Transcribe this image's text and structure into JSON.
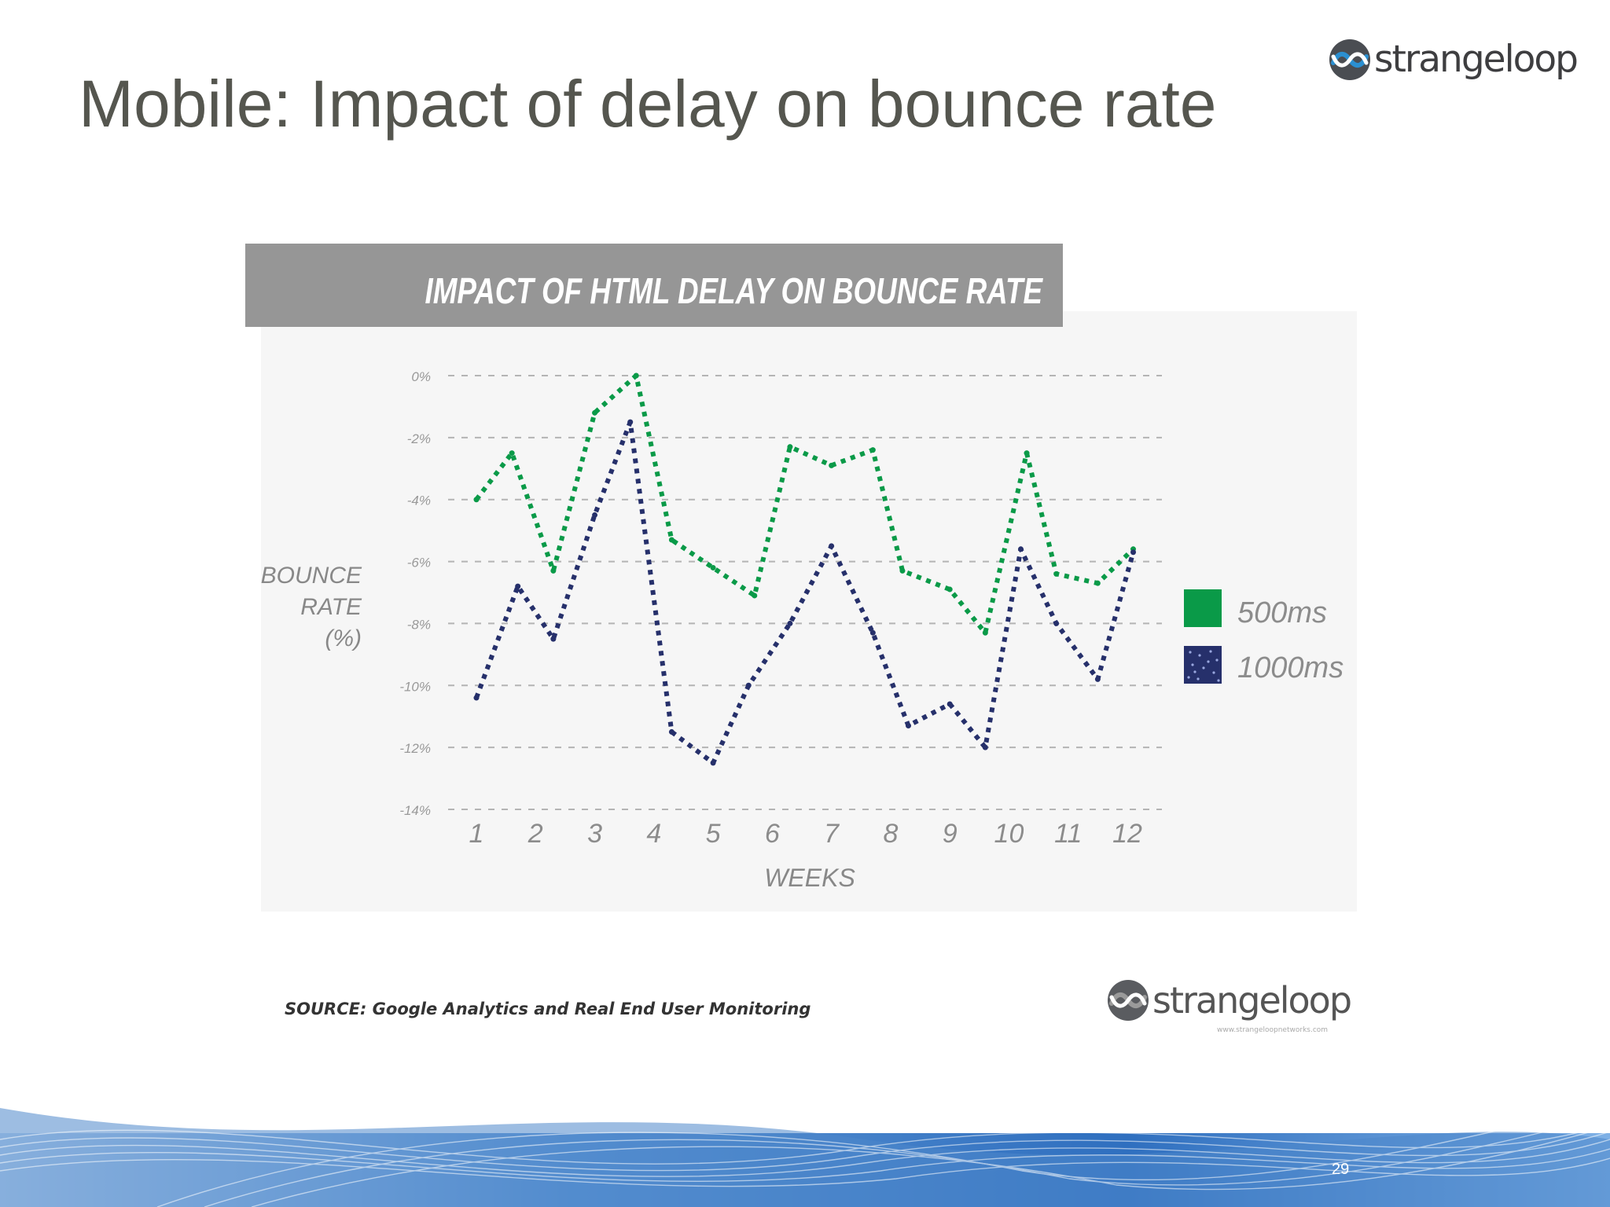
{
  "slide": {
    "title": "Mobile: Impact of delay on bounce rate",
    "logo_text": "strangeloop",
    "logo_tagline": "www.strangeloopnetworks.com",
    "page_number": "29"
  },
  "colors": {
    "series_500": "#0a9a48",
    "series_1000": "#26306b",
    "banner": "#969696",
    "plot_bg": "#f6f6f6",
    "title_text": "#55564f"
  },
  "source_text": "SOURCE:  Google Analytics and Real End User Monitoring",
  "chart_data": {
    "type": "line",
    "title": "IMPACT OF HTML DELAY ON BOUNCE RATE",
    "xlabel": "WEEKS",
    "ylabel": "BOUNCE RATE (%)",
    "ylabel_lines": [
      "BOUNCE",
      "RATE",
      "(%)"
    ],
    "x_ticks": [
      "1",
      "2",
      "3",
      "4",
      "5",
      "6",
      "7",
      "8",
      "9",
      "10",
      "11",
      "12"
    ],
    "y_ticks": [
      "0%",
      "-2%",
      "-4%",
      "-6%",
      "-8%",
      "-10%",
      "-12%",
      "-14%"
    ],
    "ylim": [
      -14,
      0
    ],
    "xlim": [
      1,
      12
    ],
    "grid": true,
    "line_style": "dotted",
    "legend_position": "right",
    "series": [
      {
        "name": "500ms",
        "color": "#0a9a48",
        "x": [
          1,
          1.6,
          2.3,
          3,
          3.7,
          4.3,
          5,
          5.7,
          6.3,
          7,
          7.7,
          8.2,
          9,
          9.6,
          10.3,
          10.8,
          11.5,
          12.1
        ],
        "y": [
          -4.0,
          -2.5,
          -6.3,
          -1.2,
          0.0,
          -5.3,
          -6.2,
          -7.1,
          -2.3,
          -2.9,
          -2.4,
          -6.3,
          -6.9,
          -8.3,
          -2.5,
          -6.4,
          -6.7,
          -5.6
        ]
      },
      {
        "name": "1000ms",
        "color": "#26306b",
        "x": [
          1,
          1.7,
          2.3,
          3,
          3.6,
          4.3,
          5,
          5.6,
          6.3,
          7,
          7.7,
          8.3,
          9,
          9.6,
          10.2,
          10.8,
          11.5,
          12.1
        ],
        "y": [
          -10.4,
          -6.8,
          -8.5,
          -4.5,
          -1.5,
          -11.5,
          -12.5,
          -10.0,
          -8.0,
          -5.5,
          -8.3,
          -11.3,
          -10.6,
          -12.0,
          -5.6,
          -8.0,
          -9.8,
          -5.7
        ]
      }
    ]
  }
}
